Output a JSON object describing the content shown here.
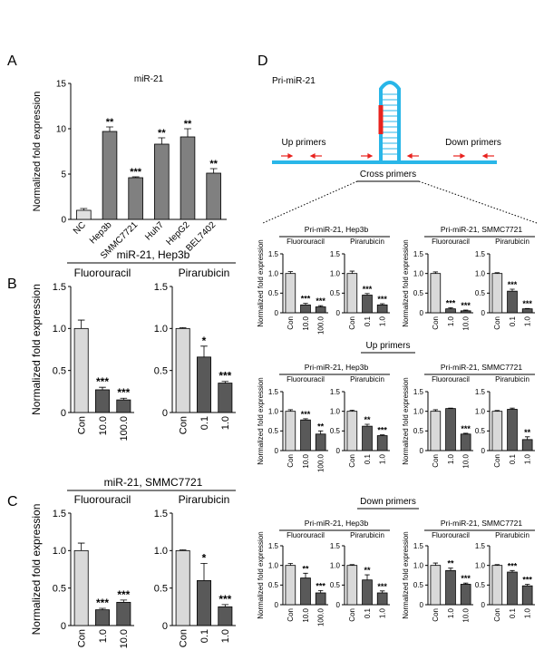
{
  "panels": [
    "A",
    "B",
    "C",
    "D"
  ],
  "diagram": {
    "title": "Pri-miR-21",
    "labels": [
      "Up primers",
      "Down primers"
    ]
  },
  "sections": [
    "Cross primers",
    "Up primers",
    "Down primers"
  ],
  "chart_data": [
    {
      "type": "bar",
      "title": "miR-21",
      "ylabel": "Normalized fold expression",
      "ylim": [
        0,
        15
      ],
      "yticks": [
        0,
        5,
        10,
        15
      ],
      "groups": [
        {
          "categories": [
            "NC",
            "Hep3b",
            "SMMC7721",
            "Huh7",
            "HepG2",
            "BEL7402"
          ],
          "values": [
            1.0,
            9.7,
            4.6,
            8.3,
            9.1,
            5.1
          ],
          "errors": [
            0.2,
            0.5,
            0.1,
            0.7,
            0.9,
            0.5
          ],
          "annotations": [
            null,
            "**",
            "***",
            "**",
            "**",
            "**"
          ],
          "colors": [
            "#e0e0e0",
            "#808080",
            "#808080",
            "#808080",
            "#808080",
            "#808080"
          ]
        }
      ]
    },
    {
      "type": "bar",
      "title": "miR-21, Hep3b",
      "ylabel": "Normalized fold expression",
      "ylim": [
        0,
        1.5
      ],
      "yticks": [
        0,
        0.5,
        {
          "value": 1,
          "label": "1.0"
        },
        1.5
      ],
      "groups": [
        {
          "name": "Fluorouracil",
          "categories": [
            "Con",
            "10.0",
            "100.0"
          ],
          "values": [
            1.0,
            0.27,
            0.15
          ],
          "errors": [
            0.1,
            0.03,
            0.02
          ],
          "annotations": [
            null,
            "***",
            "***"
          ],
          "colors": [
            "#d9d9d9",
            "#595959",
            "#595959"
          ]
        },
        {
          "name": "Pirarubicin",
          "categories": [
            "Con",
            "0.1",
            "1.0"
          ],
          "values": [
            1.0,
            0.66,
            0.35
          ],
          "errors": [
            0.01,
            0.13,
            0.02
          ],
          "annotations": [
            null,
            "*",
            "***"
          ],
          "colors": [
            "#d9d9d9",
            "#595959",
            "#595959"
          ]
        }
      ]
    },
    {
      "type": "bar",
      "title": "miR-21, SMMC7721",
      "ylabel": "Normalized fold expression",
      "ylim": [
        0,
        1.5
      ],
      "yticks": [
        0,
        0.5,
        {
          "value": 1,
          "label": "1.0"
        },
        1.5
      ],
      "groups": [
        {
          "name": "Fluorouracil",
          "categories": [
            "Con",
            "1.0",
            "10.0"
          ],
          "values": [
            1.0,
            0.21,
            0.31
          ],
          "errors": [
            0.1,
            0.02,
            0.03
          ],
          "annotations": [
            null,
            "***",
            "***"
          ],
          "colors": [
            "#d9d9d9",
            "#595959",
            "#595959"
          ]
        },
        {
          "name": "Pirarubicin",
          "categories": [
            "Con",
            "0.1",
            "1.0"
          ],
          "values": [
            1.0,
            0.6,
            0.25
          ],
          "errors": [
            0.01,
            0.23,
            0.03
          ],
          "annotations": [
            null,
            "*",
            "***"
          ],
          "colors": [
            "#d9d9d9",
            "#595959",
            "#595959"
          ]
        }
      ]
    },
    {
      "type": "bar",
      "title": "Pri-miR-21, Hep3b",
      "ylabel": "Normalized fold expression",
      "ylim": [
        0,
        1.5
      ],
      "yticks": [
        0,
        0.5,
        {
          "value": 1,
          "label": "1.0"
        },
        1.5
      ],
      "groups": [
        {
          "name": "Fluorouracil",
          "categories": [
            "Con",
            "10.0",
            "100.0"
          ],
          "values": [
            1.0,
            0.2,
            0.15
          ],
          "errors": [
            0.05,
            0.04,
            0.03
          ],
          "annotations": [
            null,
            "***",
            "***"
          ],
          "colors": [
            "#d9d9d9",
            "#595959",
            "#595959"
          ]
        },
        {
          "name": "Pirarubicin",
          "categories": [
            "Con",
            "0.1",
            "1.0"
          ],
          "values": [
            1.0,
            0.45,
            0.2
          ],
          "errors": [
            0.06,
            0.04,
            0.03
          ],
          "annotations": [
            null,
            "***",
            "***"
          ],
          "colors": [
            "#d9d9d9",
            "#595959",
            "#595959"
          ]
        }
      ]
    },
    {
      "type": "bar",
      "title": "Pri-miR-21, SMMC7721",
      "ylabel": "Normalized fold expression",
      "ylim": [
        0,
        1.5
      ],
      "yticks": [
        0,
        0.5,
        {
          "value": 1,
          "label": "1.0"
        },
        1.5
      ],
      "groups": [
        {
          "name": "Fluorouracil",
          "categories": [
            "Con",
            "1.0",
            "10.0"
          ],
          "values": [
            1.0,
            0.1,
            0.05
          ],
          "errors": [
            0.04,
            0.03,
            0.02
          ],
          "annotations": [
            null,
            "***",
            "***"
          ],
          "colors": [
            "#d9d9d9",
            "#595959",
            "#595959"
          ]
        },
        {
          "name": "Pirarubicin",
          "categories": [
            "Con",
            "0.1",
            "1.0"
          ],
          "values": [
            1.0,
            0.55,
            0.1
          ],
          "errors": [
            0.02,
            0.05,
            0.01
          ],
          "annotations": [
            null,
            "***",
            "***"
          ],
          "colors": [
            "#d9d9d9",
            "#595959",
            "#595959"
          ]
        }
      ]
    },
    {
      "type": "bar",
      "title": "Pri-miR-21, Hep3b",
      "ylabel": "Normalized fold expression",
      "ylim": [
        0,
        1.5
      ],
      "yticks": [
        0,
        0.5,
        {
          "value": 1,
          "label": "1.0"
        },
        1.5
      ],
      "groups": [
        {
          "name": "Fluorouracil",
          "categories": [
            "Con",
            "10.0",
            "100.0"
          ],
          "values": [
            1.0,
            0.78,
            0.42
          ],
          "errors": [
            0.04,
            0.03,
            0.08
          ],
          "annotations": [
            null,
            "***",
            "**"
          ],
          "colors": [
            "#d9d9d9",
            "#595959",
            "#595959"
          ]
        },
        {
          "name": "Pirarubicin",
          "categories": [
            "Con",
            "0.1",
            "1.0"
          ],
          "values": [
            1.0,
            0.62,
            0.38
          ],
          "errors": [
            0.03,
            0.05,
            0.02
          ],
          "annotations": [
            null,
            "**",
            "***"
          ],
          "colors": [
            "#d9d9d9",
            "#595959",
            "#595959"
          ]
        }
      ]
    },
    {
      "type": "bar",
      "title": "Pri-miR-21, SMMC7721",
      "ylabel": "Normalized fold expression",
      "ylim": [
        0,
        1.5
      ],
      "yticks": [
        0,
        0.5,
        {
          "value": 1,
          "label": "1.0"
        },
        1.5
      ],
      "groups": [
        {
          "name": "Fluorouracil",
          "categories": [
            "Con",
            "1.0",
            "10.0"
          ],
          "values": [
            1.0,
            1.07,
            0.42
          ],
          "errors": [
            0.04,
            0.01,
            0.02
          ],
          "annotations": [
            null,
            null,
            "***"
          ],
          "colors": [
            "#d9d9d9",
            "#595959",
            "#595959"
          ]
        },
        {
          "name": "Pirarubicin",
          "categories": [
            "Con",
            "0.1",
            "1.0"
          ],
          "values": [
            1.0,
            1.05,
            0.28
          ],
          "errors": [
            0.02,
            0.03,
            0.07
          ],
          "annotations": [
            null,
            null,
            "**"
          ],
          "colors": [
            "#d9d9d9",
            "#595959",
            "#595959"
          ]
        }
      ]
    },
    {
      "type": "bar",
      "title": "Pri-miR-21, Hep3b",
      "ylabel": "Normalized fold expression",
      "ylim": [
        0,
        1.5
      ],
      "yticks": [
        0,
        0.5,
        {
          "value": 1,
          "label": "1.0"
        },
        1.5
      ],
      "groups": [
        {
          "name": "Fluorouracil",
          "categories": [
            "Con",
            "10.0",
            "100.0"
          ],
          "values": [
            1.0,
            0.68,
            0.3
          ],
          "errors": [
            0.05,
            0.12,
            0.06
          ],
          "annotations": [
            null,
            "**",
            "***"
          ],
          "colors": [
            "#d9d9d9",
            "#595959",
            "#595959"
          ]
        },
        {
          "name": "Pirarubicin",
          "categories": [
            "Con",
            "0.1",
            "1.0"
          ],
          "values": [
            1.0,
            0.63,
            0.3
          ],
          "errors": [
            0.02,
            0.13,
            0.05
          ],
          "annotations": [
            null,
            "**",
            "***"
          ],
          "colors": [
            "#d9d9d9",
            "#595959",
            "#595959"
          ]
        }
      ]
    },
    {
      "type": "bar",
      "title": "Pri-miR-21, SMMC7721",
      "ylabel": "Normalized fold expression",
      "ylim": [
        0,
        1.5
      ],
      "yticks": [
        0,
        0.5,
        {
          "value": 1,
          "label": "1.0"
        },
        1.5
      ],
      "groups": [
        {
          "name": "Fluorouracil",
          "categories": [
            "Con",
            "1.0",
            "10.0"
          ],
          "values": [
            1.0,
            0.87,
            0.52
          ],
          "errors": [
            0.06,
            0.06,
            0.03
          ],
          "annotations": [
            null,
            "**",
            "***"
          ],
          "colors": [
            "#d9d9d9",
            "#595959",
            "#595959"
          ]
        },
        {
          "name": "Pirarubicin",
          "categories": [
            "Con",
            "0.1",
            "1.0"
          ],
          "values": [
            1.0,
            0.83,
            0.48
          ],
          "errors": [
            0.02,
            0.04,
            0.04
          ],
          "annotations": [
            null,
            "***",
            "***"
          ],
          "colors": [
            "#d9d9d9",
            "#595959",
            "#595959"
          ]
        }
      ]
    }
  ]
}
